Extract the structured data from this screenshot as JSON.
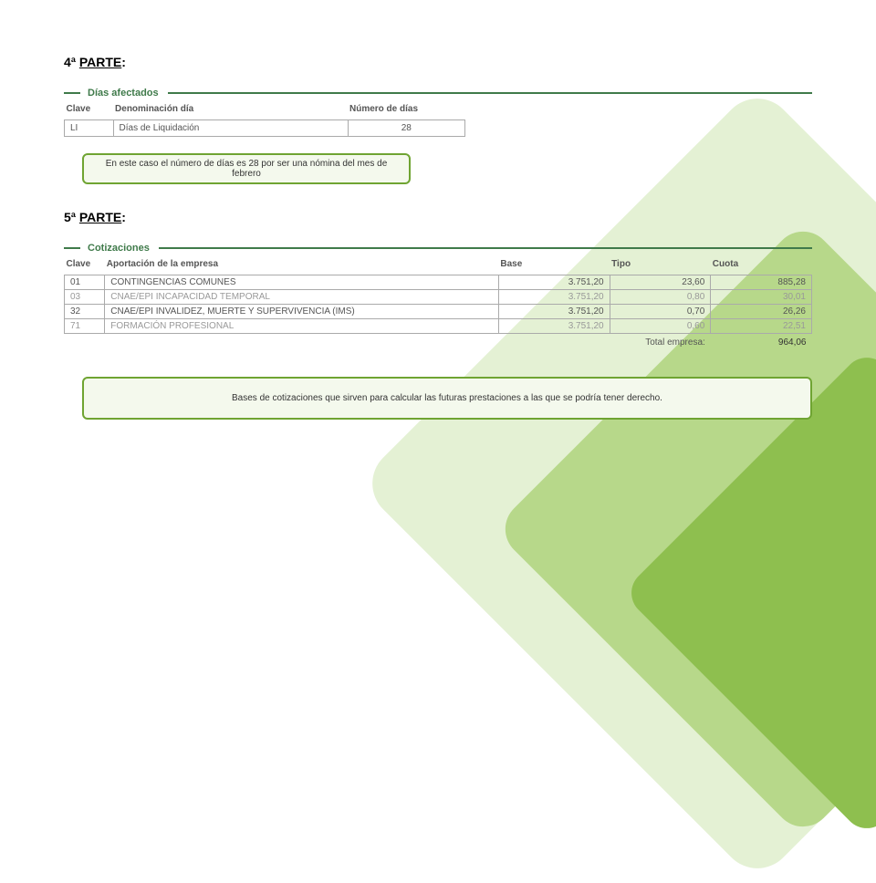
{
  "part4": {
    "heading_prefix": "4ª ",
    "heading_word": "PARTE",
    "heading_suffix": ":",
    "section_title": "Días afectados",
    "columns": [
      "Clave",
      "Denominación día",
      "Número de días"
    ],
    "row": {
      "clave": "LI",
      "denom": "Días de Liquidación",
      "dias": "28"
    },
    "callout": "En este caso el número de días es 28 por ser una nómina del mes de febrero"
  },
  "part5": {
    "heading_prefix": "5ª ",
    "heading_word": "PARTE",
    "heading_suffix": ":",
    "section_title": "Cotizaciones",
    "columns": [
      "Clave",
      "Aportación de la empresa",
      "Base",
      "Tipo",
      "Cuota"
    ],
    "rows": [
      {
        "clave": "01",
        "aport": "CONTINGENCIAS COMUNES",
        "base": "3.751,20",
        "tipo": "23,60",
        "cuota": "885,28",
        "blurred": false
      },
      {
        "clave": "03",
        "aport": "CNAE/EPI INCAPACIDAD TEMPORAL",
        "base": "3.751,20",
        "tipo": "0,80",
        "cuota": "30,01",
        "blurred": true
      },
      {
        "clave": "32",
        "aport": "CNAE/EPI INVALIDEZ, MUERTE Y SUPERVIVENCIA (IMS)",
        "base": "3.751,20",
        "tipo": "0,70",
        "cuota": "26,26",
        "blurred": false
      },
      {
        "clave": "71",
        "aport": "FORMACIÓN PROFESIONAL",
        "base": "3.751,20",
        "tipo": "0,60",
        "cuota": "22,51",
        "blurred": true
      }
    ],
    "total_label": "Total empresa:",
    "total_value": "964,06",
    "callout": "Bases de cotizaciones que sirven para calcular las futuras prestaciones a las que se podría tener derecho."
  },
  "colors": {
    "accent": "#3f7a4a",
    "callout_border": "#6fa432",
    "callout_bg": "#f4f9ed",
    "leaf1": "#e4f1d4",
    "leaf2": "#b7d88a",
    "leaf3": "#8ebf4f"
  }
}
